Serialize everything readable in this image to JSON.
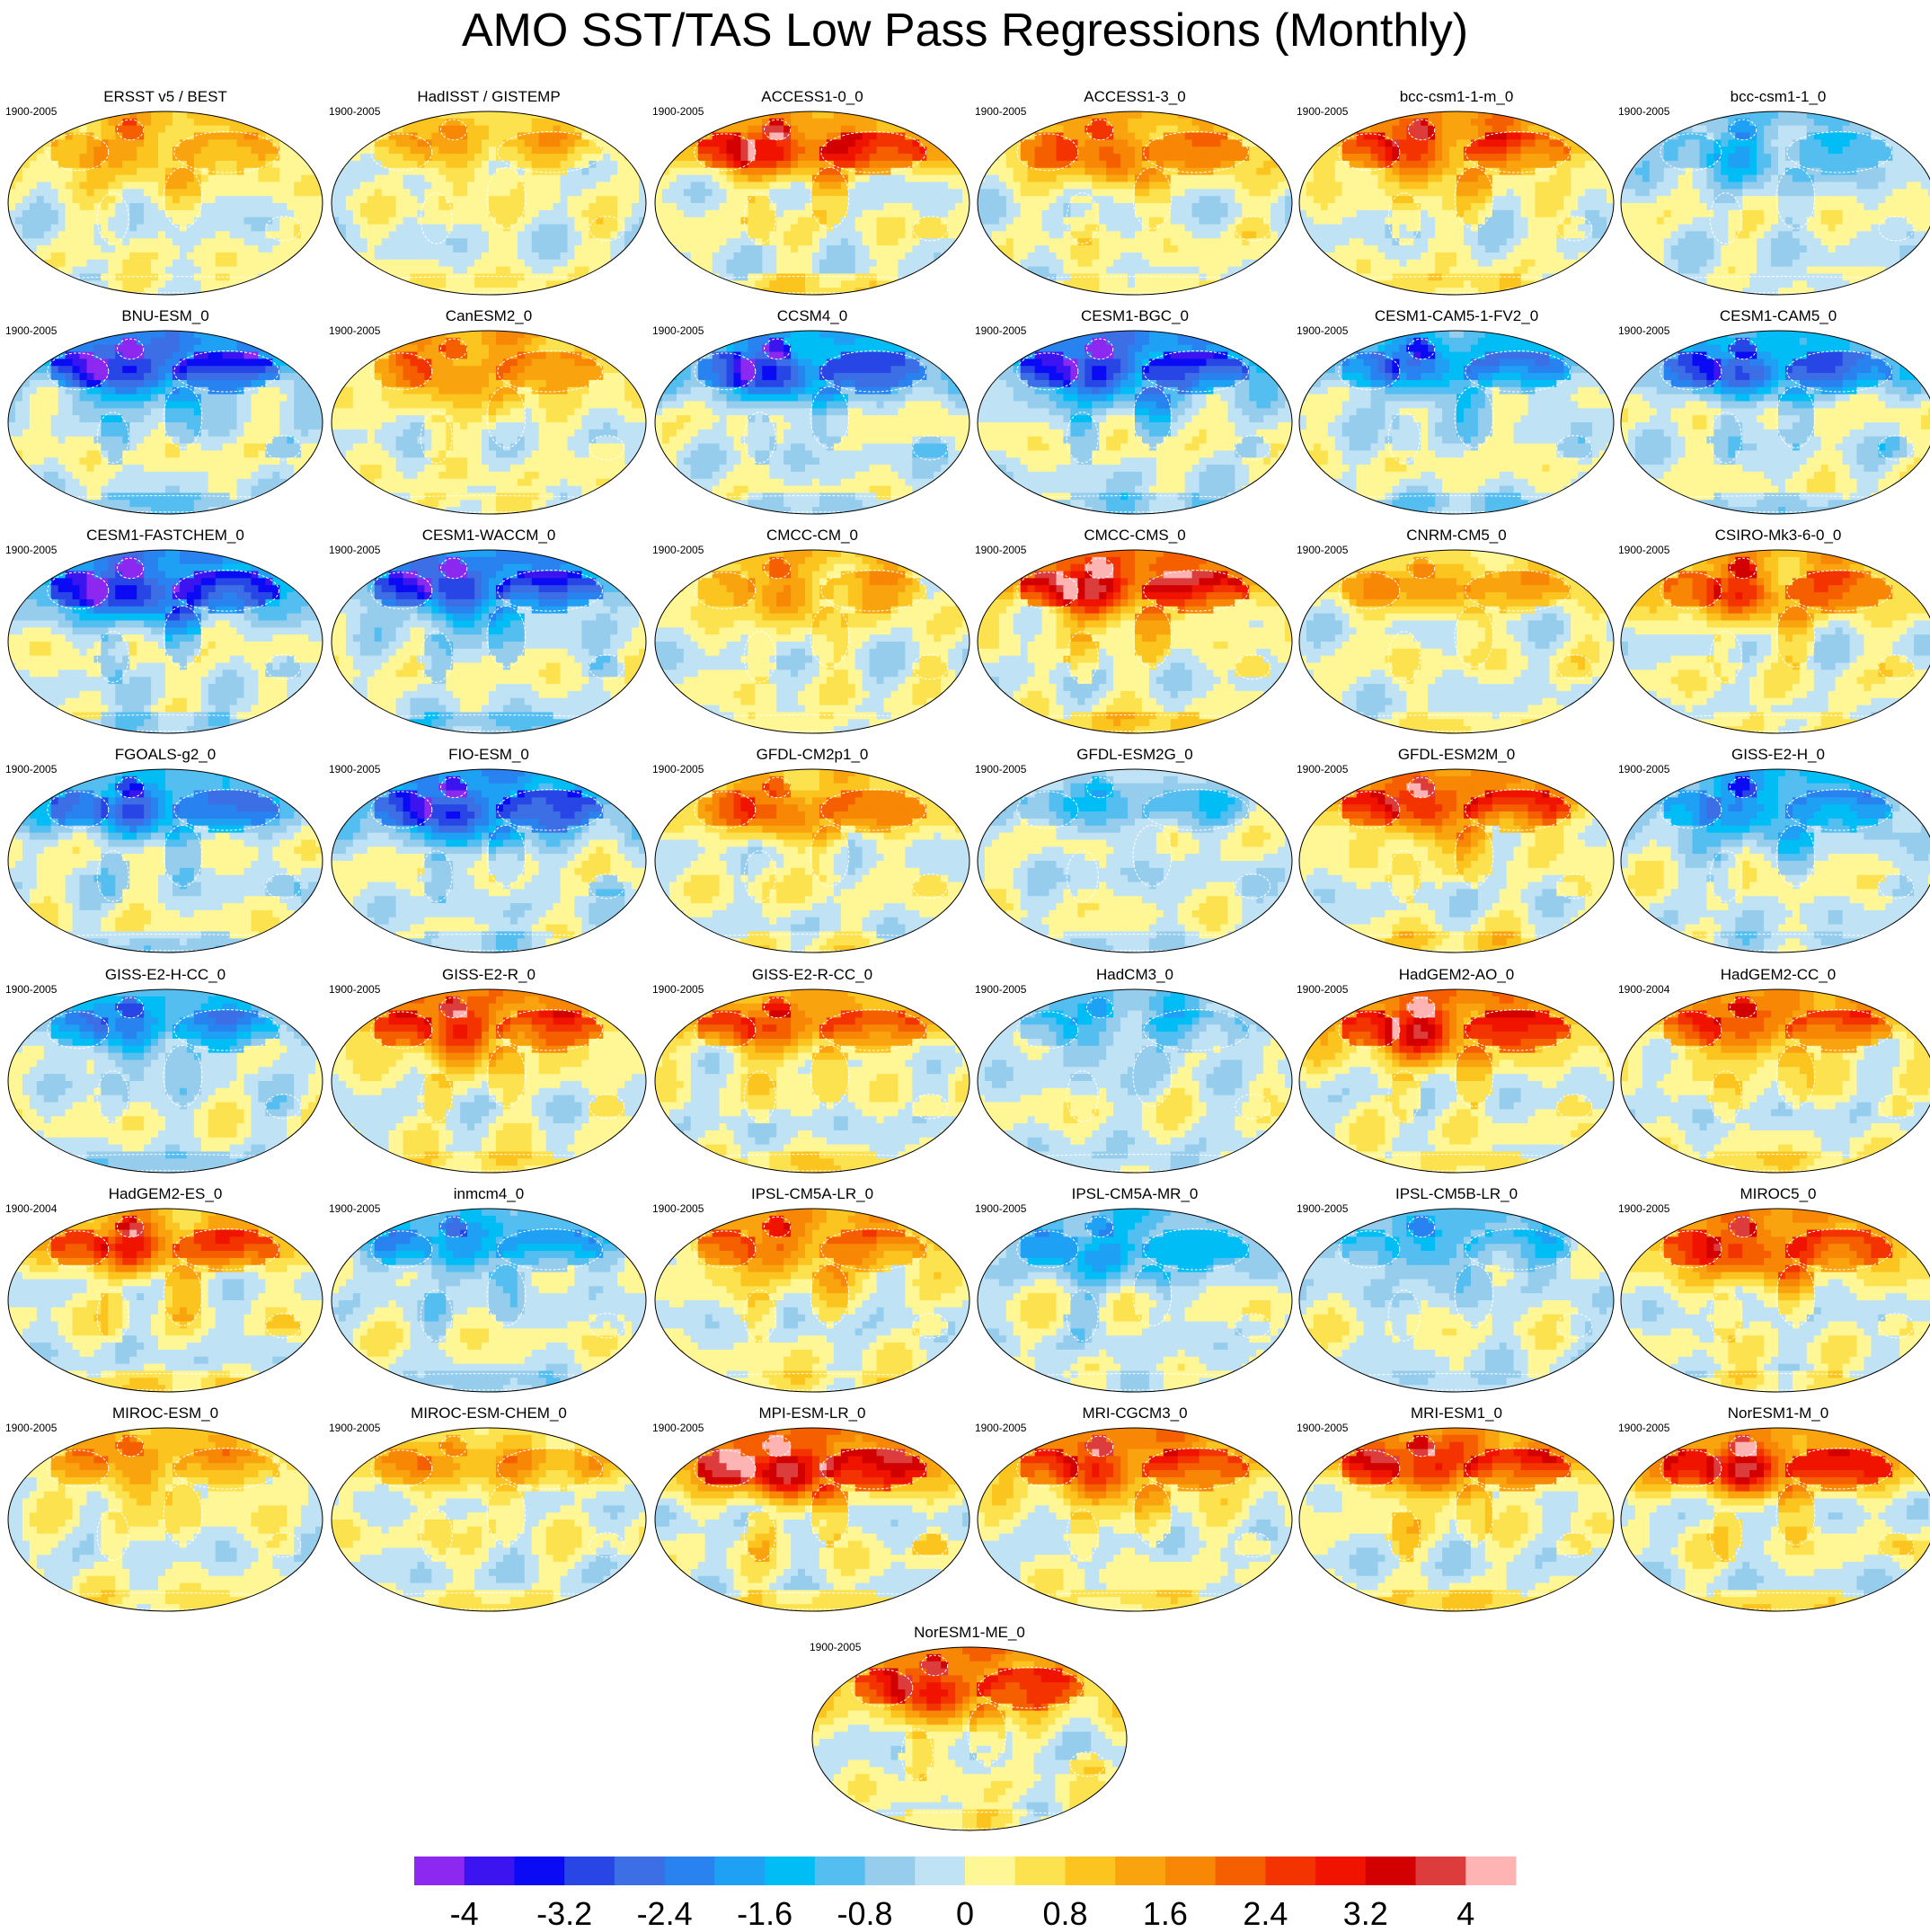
{
  "figure": {
    "title": "AMO SST/TAS Low Pass Regressions (Monthly)"
  },
  "panels": [
    {
      "title": "ERSST v5 / BEST",
      "period": "1900-2005",
      "amp": 0.7
    },
    {
      "title": "HadISST / GISTEMP",
      "period": "1900-2005",
      "amp": 0.5
    },
    {
      "title": "ACCESS1-0_0",
      "period": "1900-2005",
      "amp": 1.3
    },
    {
      "title": "ACCESS1-3_0",
      "period": "1900-2005",
      "amp": 1.0
    },
    {
      "title": "bcc-csm1-1-m_0",
      "period": "1900-2005",
      "amp": 1.2
    },
    {
      "title": "bcc-csm1-1_0",
      "period": "1900-2005",
      "amp": -0.6
    },
    {
      "title": "BNU-ESM_0",
      "period": "1900-2005",
      "amp": -1.6
    },
    {
      "title": "CanESM2_0",
      "period": "1900-2005",
      "amp": 0.9
    },
    {
      "title": "CCSM4_0",
      "period": "1900-2005",
      "amp": -1.4
    },
    {
      "title": "CESM1-BGC_0",
      "period": "1900-2005",
      "amp": -1.6
    },
    {
      "title": "CESM1-CAM5-1-FV2_0",
      "period": "1900-2005",
      "amp": -1.0
    },
    {
      "title": "CESM1-CAM5_0",
      "period": "1900-2005",
      "amp": -1.2
    },
    {
      "title": "CESM1-FASTCHEM_0",
      "period": "1900-2005",
      "amp": -1.7
    },
    {
      "title": "CESM1-WACCM_0",
      "period": "1900-2005",
      "amp": -1.5
    },
    {
      "title": "CMCC-CM_0",
      "period": "1900-2005",
      "amp": 0.7
    },
    {
      "title": "CMCC-CMS_0",
      "period": "1900-2005",
      "amp": 1.6
    },
    {
      "title": "CNRM-CM5_0",
      "period": "1900-2005",
      "amp": 0.6
    },
    {
      "title": "CSIRO-Mk3-6-0_0",
      "period": "1900-2005",
      "amp": 1.1
    },
    {
      "title": "FGOALS-g2_0",
      "period": "1900-2005",
      "amp": -1.1
    },
    {
      "title": "FIO-ESM_0",
      "period": "1900-2005",
      "amp": -1.5
    },
    {
      "title": "GFDL-CM2p1_0",
      "period": "1900-2005",
      "amp": 0.9
    },
    {
      "title": "GFDL-ESM2G_0",
      "period": "1900-2005",
      "amp": -0.4
    },
    {
      "title": "GFDL-ESM2M_0",
      "period": "1900-2005",
      "amp": 1.3
    },
    {
      "title": "GISS-E2-H_0",
      "period": "1900-2005",
      "amp": -1.0
    },
    {
      "title": "GISS-E2-H-CC_0",
      "period": "1900-2005",
      "amp": -0.9
    },
    {
      "title": "GISS-E2-R_0",
      "period": "1900-2005",
      "amp": 1.3
    },
    {
      "title": "GISS-E2-R-CC_0",
      "period": "1900-2005",
      "amp": 1.0
    },
    {
      "title": "HadCM3_0",
      "period": "1900-2005",
      "amp": -0.5
    },
    {
      "title": "HadGEM2-AO_0",
      "period": "1900-2005",
      "amp": 1.5
    },
    {
      "title": "HadGEM2-CC_0",
      "period": "1900-2004",
      "amp": 1.1
    },
    {
      "title": "HadGEM2-ES_0",
      "period": "1900-2004",
      "amp": 1.1
    },
    {
      "title": "inmcm4_0",
      "period": "1900-2005",
      "amp": -0.8
    },
    {
      "title": "IPSL-CM5A-LR_0",
      "period": "1900-2005",
      "amp": 1.0
    },
    {
      "title": "IPSL-CM5A-MR_0",
      "period": "1900-2005",
      "amp": -0.8
    },
    {
      "title": "IPSL-CM5B-LR_0",
      "period": "1900-2005",
      "amp": -0.6
    },
    {
      "title": "MIROC5_0",
      "period": "1900-2005",
      "amp": 1.3
    },
    {
      "title": "MIROC-ESM_0",
      "period": "1900-2005",
      "amp": 0.7
    },
    {
      "title": "MIROC-ESM-CHEM_0",
      "period": "1900-2005",
      "amp": 0.6
    },
    {
      "title": "MPI-ESM-LR_0",
      "period": "1900-2005",
      "amp": 1.7
    },
    {
      "title": "MRI-CGCM3_0",
      "period": "1900-2005",
      "amp": 1.3
    },
    {
      "title": "MRI-ESM1_0",
      "period": "1900-2005",
      "amp": 1.3
    },
    {
      "title": "NorESM1-M_0",
      "period": "1900-2005",
      "amp": 1.4
    },
    {
      "title": "NorESM1-ME_0",
      "period": "1900-2005",
      "amp": 1.4
    }
  ],
  "colorbar": {
    "colors": [
      "#8c28f0",
      "#3c14f0",
      "#0a0af5",
      "#2846e6",
      "#3c6ee6",
      "#2882f0",
      "#1ea0f5",
      "#00bef5",
      "#55bef0",
      "#96ccec",
      "#c0e2f5",
      "#fff796",
      "#fde250",
      "#fbc41e",
      "#f9a40f",
      "#f78705",
      "#f55f00",
      "#f43400",
      "#f01400",
      "#d20000",
      "#dc3c3c",
      "#ffb4b4"
    ],
    "tick_labels": [
      "-4",
      "-3.2",
      "-2.4",
      "-1.6",
      "-0.8",
      "0",
      "0.8",
      "1.6",
      "2.4",
      "3.2",
      "4"
    ],
    "min": -4.4,
    "max": 4.4
  }
}
